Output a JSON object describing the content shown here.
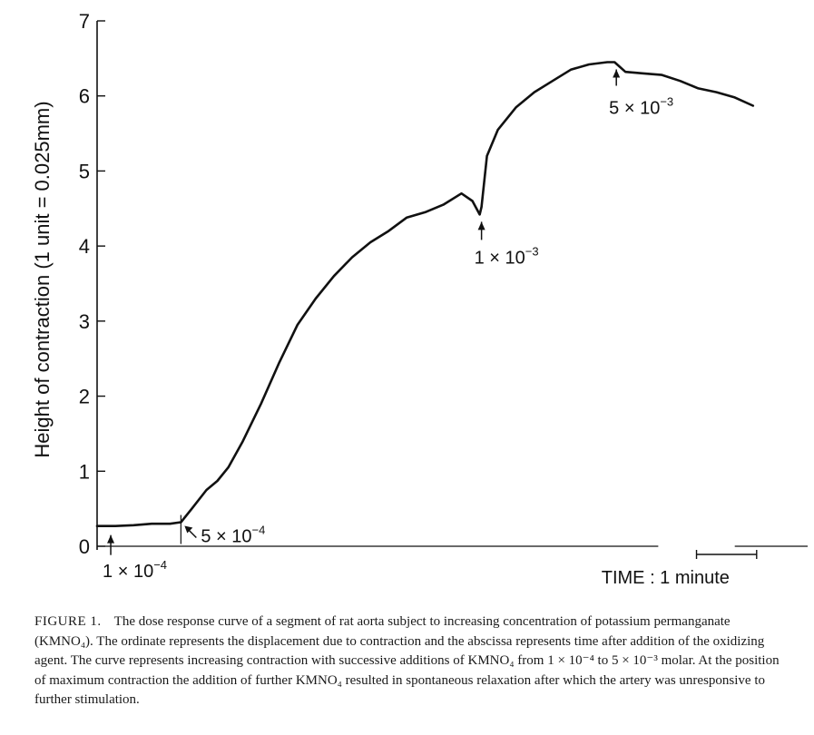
{
  "chart_data": {
    "type": "line",
    "title": "",
    "xlabel": "",
    "ylabel": "Height of contraction  (1 unit = 0.025mm)",
    "ylim": [
      0,
      7
    ],
    "yticks": [
      "0",
      "1",
      "2",
      "3",
      "4",
      "5",
      "6",
      "7"
    ],
    "xlim": [
      0,
      19.5
    ],
    "x_unit": "minutes",
    "series": [
      {
        "name": "Contraction",
        "x": [
          0,
          0.5,
          1,
          1.5,
          2,
          2.3,
          2.6,
          3.0,
          3.3,
          3.6,
          4.0,
          4.5,
          5.0,
          5.5,
          6.0,
          6.5,
          7.0,
          7.5,
          8.0,
          8.5,
          9.0,
          9.5,
          10.0,
          10.3,
          10.5,
          10.55,
          10.7,
          11.0,
          11.5,
          12.0,
          12.5,
          13.0,
          13.5,
          14.0,
          14.2,
          14.5,
          15.0,
          15.5,
          16.0,
          16.5,
          17.0,
          17.5,
          18.0
        ],
        "y": [
          0.27,
          0.27,
          0.28,
          0.3,
          0.3,
          0.32,
          0.5,
          0.75,
          0.87,
          1.05,
          1.4,
          1.9,
          2.45,
          2.95,
          3.3,
          3.6,
          3.85,
          4.05,
          4.2,
          4.38,
          4.45,
          4.55,
          4.7,
          4.6,
          4.42,
          4.52,
          5.2,
          5.55,
          5.85,
          6.05,
          6.2,
          6.35,
          6.42,
          6.45,
          6.45,
          6.32,
          6.3,
          6.28,
          6.2,
          6.1,
          6.05,
          5.98,
          5.87
        ]
      }
    ],
    "annotations": [
      {
        "label": "1 × 10",
        "exp": "−4",
        "at_x": 0.3
      },
      {
        "label": "5 × 10",
        "exp": "−4",
        "at_x": 2.3
      },
      {
        "label": "1 × 10",
        "exp": "−3",
        "at_x": 10.5
      },
      {
        "label": "5 × 10",
        "exp": "−3",
        "at_x": 14.2
      }
    ],
    "time_scale": {
      "label": "TIME : 1 minute",
      "minutes": 1
    }
  },
  "caption": {
    "label": "FIGURE 1.",
    "text": "The dose response curve of a segment of rat aorta subject to increasing concentration of potassium permanganate (KMNO₄). The ordinate represents the displacement due to contraction and the abscissa represents time after addition of the oxidizing agent. The curve represents increasing contraction with successive additions of KMNO₄ from 1 × 10⁻⁴ to 5 × 10⁻³ molar. At the position of maximum contraction the addition of further KMNO₄ resulted in spontaneous relaxation after which the artery was unresponsive to further stimulation."
  }
}
